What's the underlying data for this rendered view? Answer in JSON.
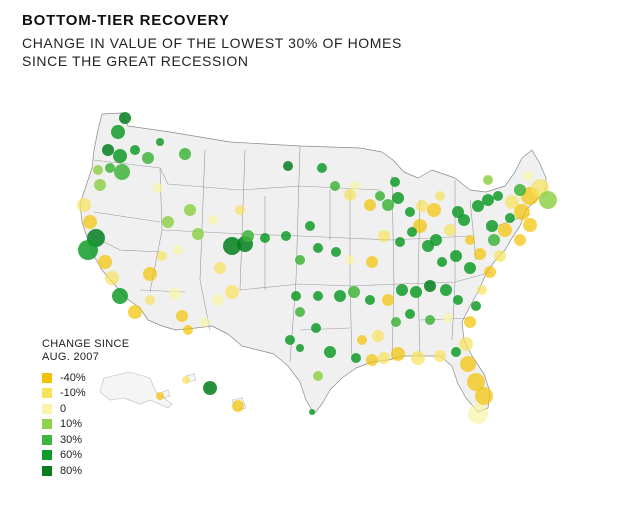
{
  "title": "BOTTOM-TIER RECOVERY",
  "subtitle_line1": "CHANGE IN VALUE OF THE LOWEST 30% OF HOMES",
  "subtitle_line2": "SINCE THE GREAT RECESSION",
  "legend": {
    "title_line1": "CHANGE SINCE",
    "title_line2": "AUG. 2007",
    "items": [
      {
        "label": "-40%",
        "color": "#f2c200"
      },
      {
        "label": "-10%",
        "color": "#f7e25a"
      },
      {
        "label": "0",
        "color": "#f8f3a6"
      },
      {
        "label": "10%",
        "color": "#8fd14a"
      },
      {
        "label": "30%",
        "color": "#3fb43a"
      },
      {
        "label": "60%",
        "color": "#109b28"
      },
      {
        "label": "80%",
        "color": "#037f1e"
      }
    ]
  },
  "map_colors": {
    "land": "#f0f0f0",
    "border": "#8a8a8a"
  }
}
